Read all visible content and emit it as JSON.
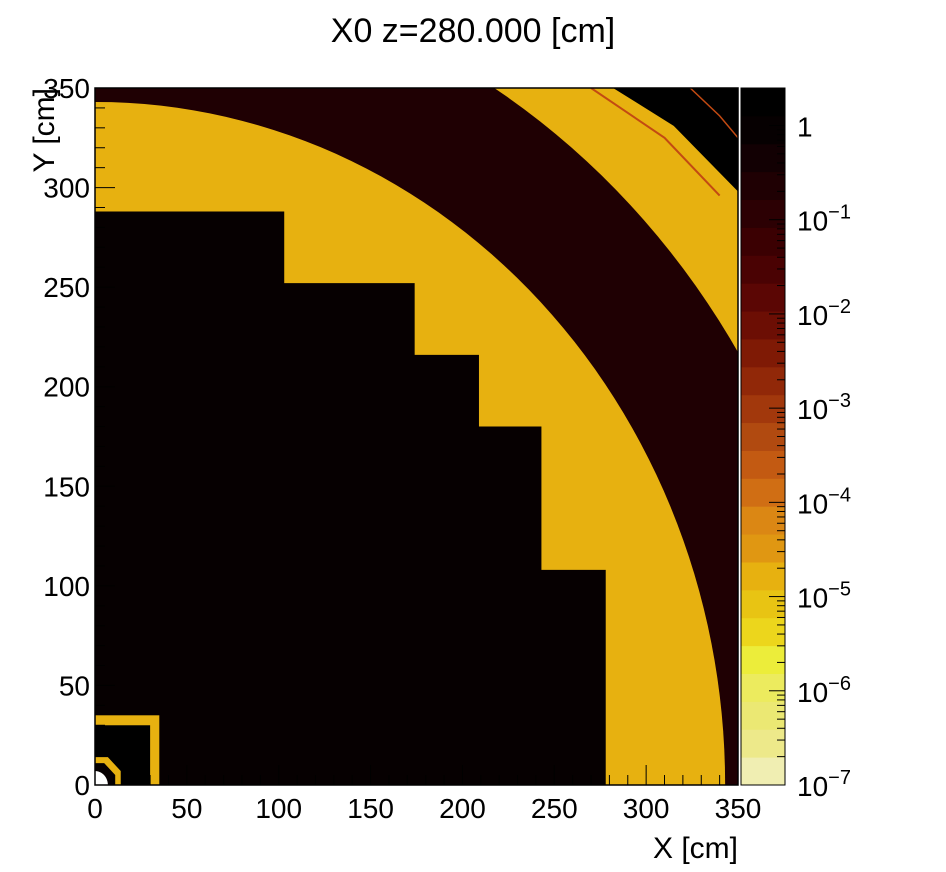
{
  "chart_data": {
    "type": "heatmap",
    "title": "X0 z=280.000 [cm]",
    "xlabel": "X [cm]",
    "ylabel": "Y [cm]",
    "xlim": [
      0,
      350
    ],
    "ylim": [
      0,
      350
    ],
    "x_ticks": [
      "0",
      "50",
      "100",
      "150",
      "200",
      "250",
      "300",
      "350"
    ],
    "y_ticks": [
      "0",
      "50",
      "100",
      "150",
      "200",
      "250",
      "300",
      "350"
    ],
    "z_scale": "log",
    "zlim": [
      1e-07,
      2.5
    ],
    "z_ticks": [
      {
        "base": "1",
        "exp": ""
      },
      {
        "base": "10",
        "exp": "−1"
      },
      {
        "base": "10",
        "exp": "−2"
      },
      {
        "base": "10",
        "exp": "−3"
      },
      {
        "base": "10",
        "exp": "−4"
      },
      {
        "base": "10",
        "exp": "−5"
      },
      {
        "base": "10",
        "exp": "−6"
      },
      {
        "base": "10",
        "exp": "−7"
      }
    ],
    "palette": [
      "#f0eeb2",
      "#ede98a",
      "#ebe873",
      "#eceb5e",
      "#eced3a",
      "#ecd61c",
      "#e8c413",
      "#e7b110",
      "#e09712",
      "#db8714",
      "#d06e14",
      "#c35a12",
      "#b14a10",
      "#a2380c",
      "#912808",
      "#7f1a05",
      "#6c0e04",
      "#5b0604",
      "#4a0203",
      "#3b0002",
      "#2c0003",
      "#1f0003",
      "#120003",
      "#060001",
      "#000000"
    ],
    "regions": [
      {
        "name": "beam pipe",
        "value": 1.0,
        "shape": "small corner ring near origin"
      },
      {
        "name": "inner block",
        "x_max": 30,
        "y_max": 30,
        "value": 1.5
      },
      {
        "name": "inner frame",
        "x_max": 35,
        "y_max": 35,
        "value": 2e-05
      },
      {
        "name": "stepped core",
        "value": 0.7,
        "steps": [
          [
            0,
            288
          ],
          [
            103,
            288
          ],
          [
            103,
            252
          ],
          [
            174,
            252
          ],
          [
            174,
            216
          ],
          [
            209,
            216
          ],
          [
            209,
            180
          ],
          [
            243,
            180
          ],
          [
            243,
            108
          ],
          [
            278,
            108
          ],
          [
            278,
            0
          ]
        ]
      },
      {
        "name": "cylindrical gap",
        "r_max": 343,
        "value": 2e-05
      },
      {
        "name": "outer shell",
        "r_min": 343,
        "r_max": 412,
        "value": 0.3
      },
      {
        "name": "outer gap",
        "r_min": 412,
        "r_max": 466,
        "value": 2e-05
      },
      {
        "name": "corner octagon edge",
        "value": 1.8
      }
    ]
  }
}
